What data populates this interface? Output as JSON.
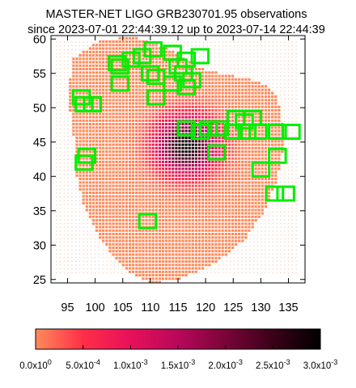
{
  "chart_data": {
    "type": "heatmap",
    "title": "MASTER-NET LIGO GRB230701.95 observations",
    "subtitle": "since 2023-07-01 22:44:39.12 up to 2023-07-14 22:44:39",
    "xlabel": "",
    "ylabel": "",
    "xlim": [
      92,
      138
    ],
    "ylim": [
      24.5,
      60.5
    ],
    "x_ticks": [
      "95",
      "100",
      "105",
      "110",
      "115",
      "120",
      "125",
      "130",
      "135"
    ],
    "y_ticks": [
      "25",
      "30",
      "35",
      "40",
      "45",
      "50",
      "55",
      "60"
    ],
    "colorbar": {
      "range": [
        0,
        0.003
      ],
      "tick_values": [
        0,
        0.0005,
        0.001,
        0.0015,
        0.002,
        0.0025,
        0.003
      ],
      "tick_labels": [
        {
          "mant": "0.0x10",
          "exp": "0"
        },
        {
          "mant": "5.0x10",
          "exp": "-4"
        },
        {
          "mant": "1.0x10",
          "exp": "-3"
        },
        {
          "mant": "1.5x10",
          "exp": "-3"
        },
        {
          "mant": "2.0x10",
          "exp": "-3"
        },
        {
          "mant": "2.5x10",
          "exp": "-3"
        },
        {
          "mant": "3.0x10",
          "exp": "-3"
        }
      ],
      "colors": [
        "#ff8a5a",
        "#ff2e48",
        "#e8105a",
        "#b8085a",
        "#7a0538",
        "#3a0118",
        "#000000"
      ]
    },
    "probability_region": {
      "outline": [
        [
          110,
          24.3
        ],
        [
          116,
          25.2
        ],
        [
          122,
          27.4
        ],
        [
          127,
          30.7
        ],
        [
          131,
          35.3
        ],
        [
          133,
          39.7
        ],
        [
          134,
          43.6
        ],
        [
          134,
          47.7
        ],
        [
          133,
          51.5
        ],
        [
          130,
          53.8
        ],
        [
          125,
          54.6
        ],
        [
          119,
          55.7
        ],
        [
          113,
          58.7
        ],
        [
          107,
          60.4
        ],
        [
          101,
          59.8
        ],
        [
          96,
          57.2
        ],
        [
          95,
          51.7
        ],
        [
          96,
          47.1
        ],
        [
          96.5,
          40.5
        ],
        [
          98,
          35.5
        ],
        [
          101,
          30.8
        ],
        [
          105,
          26.7
        ]
      ],
      "peak": [
        116.5,
        44.5
      ],
      "peak_value": 0.003
    },
    "fields": [
      [
        104,
        56.5
      ],
      [
        104.5,
        56
      ],
      [
        108.5,
        57.5
      ],
      [
        106.5,
        57
      ],
      [
        110.5,
        58.5
      ],
      [
        114,
        58
      ],
      [
        116.5,
        57
      ],
      [
        119,
        57.5
      ],
      [
        115,
        56
      ],
      [
        110,
        55
      ],
      [
        111,
        54.5
      ],
      [
        104.5,
        53.5
      ],
      [
        114,
        53.5
      ],
      [
        116,
        55
      ],
      [
        117.5,
        54
      ],
      [
        116.5,
        53
      ],
      [
        111,
        51.5
      ],
      [
        97.5,
        51.5
      ],
      [
        99.5,
        50.5
      ],
      [
        98,
        50.5
      ],
      [
        116.5,
        47
      ],
      [
        119,
        46.5
      ],
      [
        120.5,
        47
      ],
      [
        122.5,
        47
      ],
      [
        125.5,
        48.5
      ],
      [
        127,
        48
      ],
      [
        128.5,
        48.5
      ],
      [
        125,
        46.5
      ],
      [
        127.5,
        46.5
      ],
      [
        129.5,
        46.5
      ],
      [
        133,
        46.5
      ],
      [
        135.5,
        46.5
      ],
      [
        122,
        43.5
      ],
      [
        98.5,
        43
      ],
      [
        98,
        42
      ],
      [
        133,
        43
      ],
      [
        130,
        41
      ],
      [
        132.5,
        37.5
      ],
      [
        134.5,
        37.5
      ],
      [
        109.5,
        33.5
      ]
    ],
    "field_size": [
      3,
      2
    ],
    "field_color": "#00ee00"
  }
}
